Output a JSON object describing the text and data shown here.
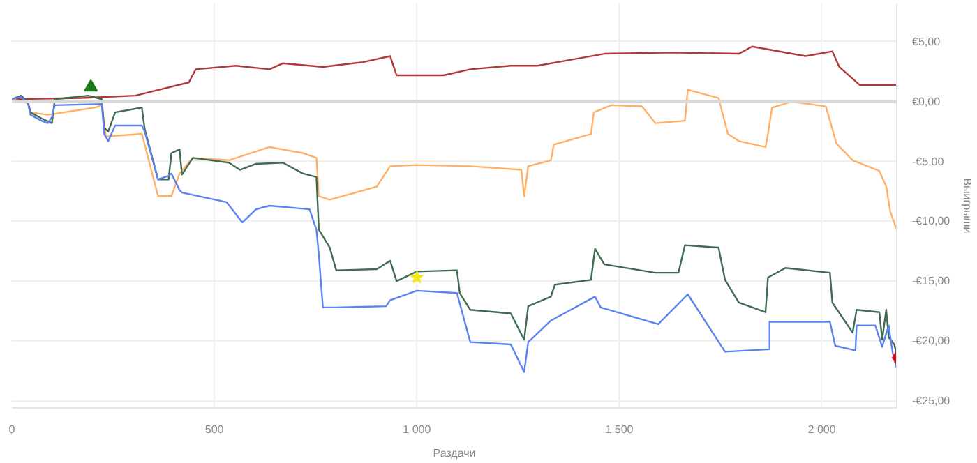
{
  "chart_data": {
    "type": "line",
    "xlabel": "Раздачи",
    "ylabel": "Выигрыши",
    "xlim": [
      0,
      2185
    ],
    "ylim": [
      -25.6,
      8.2
    ],
    "xticks": [
      0,
      500,
      {
        "value": 1000,
        "label": "1 000"
      },
      {
        "value": 1500,
        "label": "1 500"
      },
      {
        "value": 2000,
        "label": "2 000"
      }
    ],
    "yticks": [
      {
        "value": 5,
        "label": "€5,00"
      },
      {
        "value": 0,
        "label": "€0,00"
      },
      {
        "value": -5,
        "label": "-€5,00"
      },
      {
        "value": -10,
        "label": "-€10,00"
      },
      {
        "value": -15,
        "label": "-€15,00"
      },
      {
        "value": -20,
        "label": "-€20,00"
      },
      {
        "value": -25,
        "label": "-€25,00"
      }
    ],
    "grid": true,
    "line_style": "solid",
    "ref_lines": [
      {
        "axis": "y",
        "value": 0,
        "color": "#d9d9d9"
      }
    ],
    "series": [
      {
        "color": "#b03a3a",
        "x": [
          0,
          172,
          305,
          437,
          454,
          553,
          636,
          669,
          768,
          867,
          934,
          950,
          1066,
          1132,
          1232,
          1298,
          1364,
          1463,
          1629,
          1795,
          1828,
          1960,
          2026,
          2043,
          2093,
          2185
        ],
        "values": [
          0.2,
          0.3,
          0.5,
          1.6,
          2.7,
          3.0,
          2.7,
          3.2,
          2.9,
          3.3,
          3.8,
          2.2,
          2.2,
          2.7,
          3.0,
          3.0,
          3.4,
          4.0,
          4.1,
          4.0,
          4.6,
          3.8,
          4.2,
          2.9,
          1.4,
          1.4
        ]
      },
      {
        "color": "#ffb066",
        "x": [
          0,
          40,
          46,
          89,
          205,
          222,
          232,
          238,
          321,
          328,
          361,
          394,
          414,
          447,
          536,
          636,
          718,
          752,
          758,
          785,
          901,
          934,
          1000,
          1132,
          1258,
          1265,
          1275,
          1331,
          1338,
          1430,
          1437,
          1480,
          1556,
          1589,
          1662,
          1669,
          1745,
          1768,
          1795,
          1861,
          1867,
          1877,
          1927,
          2010,
          2036,
          2076,
          2142,
          2159,
          2169,
          2185
        ],
        "values": [
          0.2,
          -0.1,
          -0.9,
          -1.1,
          -0.5,
          -0.3,
          -2.9,
          -2.9,
          -2.7,
          -3.6,
          -7.9,
          -7.9,
          -6.0,
          -4.7,
          -4.9,
          -3.8,
          -4.3,
          -4.7,
          -7.9,
          -8.2,
          -7.1,
          -5.4,
          -5.3,
          -5.4,
          -5.7,
          -7.9,
          -5.4,
          -4.9,
          -3.6,
          -2.7,
          -0.9,
          -0.3,
          -0.4,
          -1.8,
          -1.6,
          1.0,
          0.3,
          -2.7,
          -3.3,
          -3.8,
          -2.7,
          -0.5,
          0.0,
          -0.4,
          -3.5,
          -4.9,
          -5.8,
          -7.1,
          -9.2,
          -10.7
        ]
      },
      {
        "color": "#3f6b50",
        "x": [
          0,
          23,
          40,
          46,
          73,
          99,
          106,
          189,
          222,
          228,
          238,
          255,
          321,
          328,
          361,
          387,
          394,
          414,
          420,
          447,
          536,
          563,
          603,
          669,
          718,
          752,
          758,
          785,
          801,
          901,
          934,
          950,
          1000,
          1099,
          1106,
          1132,
          1232,
          1265,
          1275,
          1331,
          1341,
          1430,
          1440,
          1463,
          1589,
          1646,
          1662,
          1745,
          1761,
          1795,
          1861,
          1867,
          1910,
          2020,
          2026,
          2076,
          2086,
          2142,
          2149,
          2159,
          2165,
          2179,
          2185
        ],
        "values": [
          0.2,
          0.5,
          -0.1,
          -0.9,
          -1.4,
          -1.8,
          0.2,
          0.5,
          0.2,
          -2.2,
          -2.5,
          -0.9,
          -0.5,
          -2.3,
          -6.5,
          -6.5,
          -4.3,
          -4.0,
          -6.1,
          -4.7,
          -5.1,
          -5.7,
          -5.2,
          -5.1,
          -6.0,
          -6.3,
          -10.7,
          -12.2,
          -14.1,
          -14.0,
          -13.3,
          -15.0,
          -14.2,
          -14.1,
          -16.0,
          -17.4,
          -17.7,
          -19.9,
          -17.1,
          -16.3,
          -15.3,
          -14.9,
          -12.3,
          -13.6,
          -14.3,
          -14.3,
          -12.0,
          -12.2,
          -14.9,
          -16.8,
          -17.6,
          -14.7,
          -13.9,
          -14.3,
          -16.8,
          -19.3,
          -17.4,
          -17.6,
          -19.9,
          -17.4,
          -19.7,
          -20.3,
          -21.2
        ]
      },
      {
        "color": "#5b82f0",
        "x": [
          0,
          23,
          40,
          46,
          73,
          89,
          99,
          106,
          222,
          228,
          238,
          255,
          321,
          328,
          361,
          387,
          394,
          414,
          420,
          530,
          569,
          603,
          636,
          735,
          752,
          758,
          768,
          801,
          924,
          934,
          1000,
          1099,
          1132,
          1232,
          1265,
          1275,
          1331,
          1440,
          1454,
          1596,
          1669,
          1761,
          1871,
          1871,
          2020,
          2033,
          2083,
          2086,
          2132,
          2149,
          2165,
          2175,
          2185
        ],
        "values": [
          0.2,
          0.4,
          -0.2,
          -1.1,
          -1.6,
          -1.8,
          -1.3,
          -0.3,
          -0.2,
          -2.7,
          -3.3,
          -2.0,
          -2.0,
          -2.5,
          -6.5,
          -6.2,
          -6.0,
          -7.4,
          -7.6,
          -8.4,
          -10.1,
          -9.0,
          -8.7,
          -9.0,
          -10.7,
          -12.8,
          -17.2,
          -17.2,
          -17.1,
          -16.6,
          -15.8,
          -16.0,
          -20.1,
          -20.3,
          -22.6,
          -20.1,
          -18.3,
          -16.3,
          -17.2,
          -18.6,
          -16.1,
          -20.9,
          -20.7,
          -18.4,
          -18.4,
          -20.4,
          -20.8,
          -18.7,
          -18.7,
          -20.5,
          -18.7,
          -21.0,
          -22.3
        ]
      },
      {
        "type": "scatter",
        "marker": "triangle",
        "color": "#1a7a1a",
        "x": [
          195
        ],
        "values": [
          1.2
        ]
      },
      {
        "type": "scatter",
        "marker": "star",
        "color": "#f5e61a",
        "x": [
          1000
        ],
        "values": [
          -14.7
        ]
      },
      {
        "type": "scatter",
        "marker": "diamond",
        "color": "#d01010",
        "x": [
          2185
        ],
        "values": [
          -21.4
        ]
      }
    ]
  }
}
